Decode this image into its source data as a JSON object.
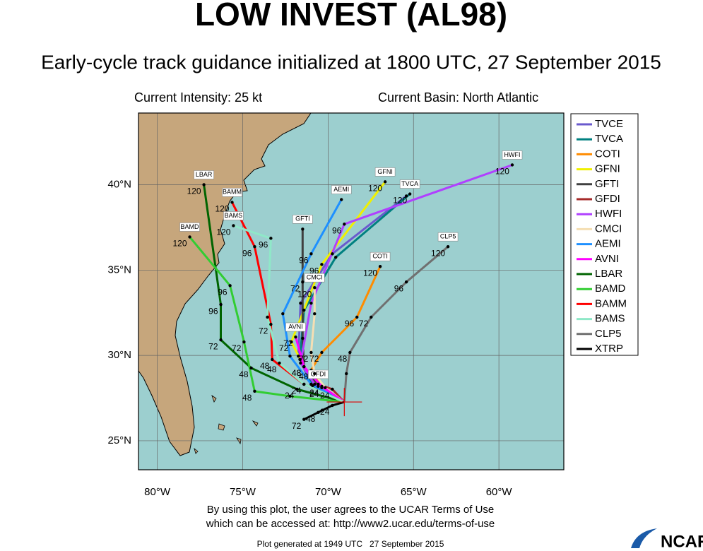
{
  "chart_data": {
    "type": "track_map",
    "title": "LOW INVEST (AL98)",
    "subtitle": "Early-cycle track guidance initialized at 1800 UTC, 27 September 2015",
    "intensity": "Current Intensity: 25 kt",
    "basin": "Current Basin: North Atlantic",
    "xlim": [
      -81.1,
      -56.2
    ],
    "ylim": [
      23.3,
      44.2
    ],
    "xticks": [
      {
        "value": -80,
        "label": "80°W"
      },
      {
        "value": -75,
        "label": "75°W"
      },
      {
        "value": -70,
        "label": "70°W"
      },
      {
        "value": -65,
        "label": "65°W"
      },
      {
        "value": -60,
        "label": "60°W"
      }
    ],
    "yticks": [
      {
        "value": 25,
        "label": "25°N"
      },
      {
        "value": 30,
        "label": "30°N"
      },
      {
        "value": 35,
        "label": "35°N"
      },
      {
        "value": 40,
        "label": "40°N"
      }
    ],
    "grid": true,
    "legend": "right",
    "series": [
      {
        "name": "TVCE",
        "color": "#6a5acd",
        "label_box": false,
        "lon": [
          -69.05,
          -70.99,
          -71.74,
          -71.61,
          -69.75,
          -65.42
        ],
        "lat": [
          27.27,
          28.31,
          29.96,
          33.06,
          35.95,
          39.34
        ],
        "hours": [
          null,
          null,
          null,
          null,
          null,
          null
        ]
      },
      {
        "name": "TVCA",
        "color": "#008080",
        "label_box": true,
        "lon": [
          -69.05,
          -70.91,
          -71.65,
          -71.41,
          -69.55,
          -65.21
        ],
        "lat": [
          27.27,
          28.23,
          29.76,
          32.65,
          35.75,
          39.46
        ],
        "hours": [
          null,
          null,
          null,
          null,
          null,
          "120"
        ]
      },
      {
        "name": "COTI",
        "color": "#ff8c00",
        "label_box": true,
        "lon": [
          -69.05,
          -70.37,
          -70.99,
          -70.37,
          -68.31,
          -66.95
        ],
        "lat": [
          27.27,
          28.11,
          29.14,
          30.17,
          32.24,
          35.21
        ],
        "hours": [
          null,
          "24",
          "48",
          "72",
          "96",
          "120"
        ]
      },
      {
        "name": "GFNI",
        "color": "#f0f000",
        "label_box": true,
        "lon": [
          -69.05,
          -70.58,
          -71.41,
          -72.15,
          -70.37,
          -66.66
        ],
        "lat": [
          27.27,
          28.31,
          29.34,
          30.79,
          35.33,
          40.17
        ],
        "hours": [
          null,
          null,
          "48",
          "72",
          "96",
          "120"
        ]
      },
      {
        "name": "GFTI",
        "color": "#404040",
        "label_box": true,
        "lon": [
          -69.05,
          -70.58,
          -71.41,
          -71.49,
          -71.49,
          -71.49
        ],
        "lat": [
          27.27,
          28.19,
          29.34,
          31.0,
          34.3,
          37.4
        ],
        "hours": [
          null,
          null,
          null,
          null,
          "72",
          null
        ]
      },
      {
        "name": "GFDI",
        "color": "#a52a2a",
        "label_box": true,
        "lon": [
          -69.05,
          -69.75,
          -70.58
        ],
        "lat": [
          27.27,
          28.02,
          28.31
        ],
        "hours": [
          null,
          "24",
          null
        ]
      },
      {
        "name": "HWFI",
        "color": "#b040ff",
        "label_box": true,
        "lon": [
          -69.05,
          -70.79,
          -71.61,
          -70.99,
          -69.05,
          -59.22
        ],
        "lat": [
          27.27,
          28.31,
          29.55,
          33.06,
          37.69,
          41.16
        ],
        "hours": [
          null,
          null,
          null,
          null,
          "96",
          "120"
        ]
      },
      {
        "name": "CMCI",
        "color": "#f5deb3",
        "label_box": true,
        "lon": [
          -69.05,
          -70.17,
          -70.79,
          -70.99,
          -70.79,
          -70.79
        ],
        "lat": [
          27.27,
          28.11,
          28.93,
          30.17,
          32.44,
          33.97
        ],
        "hours": [
          null,
          null,
          null,
          "72",
          null,
          "120"
        ]
      },
      {
        "name": "AEMI",
        "color": "#1e90ff",
        "label_box": true,
        "lon": [
          -69.05,
          -70.99,
          -72.23,
          -72.65,
          -70.99,
          -69.22
        ],
        "lat": [
          27.27,
          28.31,
          29.96,
          32.44,
          35.95,
          39.13
        ],
        "hours": [
          null,
          null,
          null,
          null,
          "96",
          null
        ]
      },
      {
        "name": "AVNI",
        "color": "#ff00ff",
        "label_box": true,
        "lon": [
          -69.05,
          -70.37,
          -71.41,
          -71.9
        ],
        "lat": [
          27.27,
          28.19,
          29.34,
          31.08
        ],
        "hours": [
          null,
          "24",
          "48",
          "72"
        ]
      },
      {
        "name": "LBAR",
        "color": "#006400",
        "label_box": true,
        "lon": [
          -69.05,
          -71.82,
          -74.5,
          -76.28,
          -76.28,
          -77.27
        ],
        "lat": [
          27.27,
          28.02,
          29.26,
          30.91,
          32.98,
          40.0
        ],
        "hours": [
          null,
          "24",
          "48",
          "72",
          "96",
          "120"
        ]
      },
      {
        "name": "BAMD",
        "color": "#32cd32",
        "label_box": true,
        "lon": [
          -69.05,
          -72.23,
          -74.3,
          -74.92,
          -75.74,
          -78.1
        ],
        "lat": [
          27.27,
          27.61,
          27.9,
          30.79,
          34.09,
          36.94
        ],
        "hours": [
          null,
          null,
          "48",
          "72",
          "96",
          "120"
        ]
      },
      {
        "name": "BAMM",
        "color": "#ff0000",
        "label_box": true,
        "lon": [
          -69.05,
          -71.41,
          -73.27,
          -73.35,
          -74.3,
          -75.62
        ],
        "lat": [
          27.27,
          28.31,
          29.76,
          31.82,
          36.37,
          38.97
        ],
        "hours": [
          null,
          "24",
          "48",
          "72",
          "96",
          "120"
        ]
      },
      {
        "name": "BAMS",
        "color": "#8fe8c8",
        "label_box": true,
        "lon": [
          -69.05,
          -71.41,
          -72.85,
          -73.55,
          -73.35,
          -75.54
        ],
        "lat": [
          27.27,
          28.31,
          29.55,
          32.24,
          36.86,
          37.6
        ],
        "hours": [
          null,
          null,
          "48",
          null,
          "96",
          "120"
        ]
      },
      {
        "name": "CLP5",
        "color": "#707070",
        "label_box": true,
        "lon": [
          -69.05,
          -68.93,
          -68.72,
          -67.48,
          -65.42,
          -62.98
        ],
        "lat": [
          27.27,
          28.93,
          30.17,
          32.24,
          34.3,
          36.37
        ],
        "hours": [
          null,
          null,
          "48",
          "72",
          "96",
          "120"
        ]
      },
      {
        "name": "XTRP",
        "color": "#000000",
        "label_box": false,
        "lon": [
          -69.05,
          -69.75,
          -70.58,
          -71.41
        ],
        "lat": [
          27.27,
          27.07,
          26.66,
          26.25
        ],
        "hours": [
          null,
          "24",
          "48",
          "72"
        ]
      }
    ],
    "terms_line1": "By using this plot, the user agrees to the UCAR Terms of Use",
    "terms_line2": "which can be accessed at: http://www2.ucar.edu/terms-of-use",
    "generated": "Plot generated at 1949 UTC   27 September 2015",
    "logo": "NCAR"
  }
}
